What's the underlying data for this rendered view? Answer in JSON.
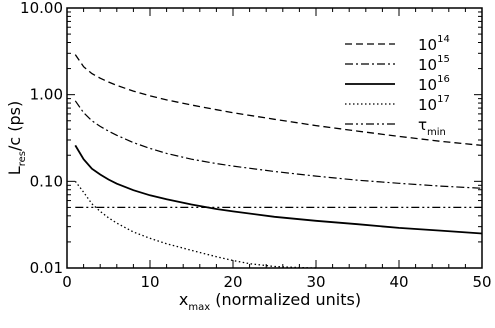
{
  "chart_data": {
    "type": "line",
    "xlabel": {
      "main": "x",
      "sub": "max",
      "rest": " (normalized units)"
    },
    "ylabel": {
      "main": "L",
      "sub": "res",
      "rest": "/c (ps)"
    },
    "xlim": [
      0,
      50
    ],
    "ylim": [
      0.01,
      10
    ],
    "yscale": "log",
    "x_ticks": [
      "0",
      "10",
      "20",
      "30",
      "40",
      "50"
    ],
    "y_ticks": [
      {
        "value": 10,
        "label": "10.00"
      },
      {
        "value": 1,
        "label": "1.00"
      },
      {
        "value": 0.1,
        "label": "0.10"
      },
      {
        "value": 0.01,
        "label": "0.01"
      }
    ],
    "grid": false,
    "legend_position": "top-right",
    "series": [
      {
        "name": "10",
        "name_sup": "14",
        "dash": "dashed",
        "x": [
          1,
          2,
          3,
          4,
          5,
          6,
          8,
          10,
          12,
          15,
          18,
          20,
          25,
          30,
          35,
          40,
          45,
          50
        ],
        "y": [
          2.9,
          2.1,
          1.75,
          1.55,
          1.4,
          1.28,
          1.1,
          0.97,
          0.87,
          0.76,
          0.67,
          0.62,
          0.52,
          0.44,
          0.38,
          0.33,
          0.29,
          0.26
        ]
      },
      {
        "name": "10",
        "name_sup": "15",
        "dash": "dashdot",
        "x": [
          1,
          2,
          3,
          4,
          5,
          6,
          8,
          10,
          12,
          15,
          18,
          20,
          25,
          30,
          35,
          40,
          45,
          50
        ],
        "y": [
          0.85,
          0.62,
          0.5,
          0.43,
          0.38,
          0.34,
          0.28,
          0.24,
          0.21,
          0.18,
          0.16,
          0.15,
          0.13,
          0.115,
          0.103,
          0.095,
          0.088,
          0.083
        ]
      },
      {
        "name": "10",
        "name_sup": "16",
        "dash": "solid",
        "x": [
          1,
          2,
          3,
          4,
          5,
          6,
          8,
          10,
          12,
          15,
          18,
          20,
          25,
          30,
          35,
          40,
          45,
          50
        ],
        "y": [
          0.26,
          0.18,
          0.14,
          0.12,
          0.105,
          0.094,
          0.079,
          0.069,
          0.062,
          0.054,
          0.048,
          0.045,
          0.039,
          0.035,
          0.032,
          0.029,
          0.027,
          0.025
        ]
      },
      {
        "name": "10",
        "name_sup": "17",
        "dash": "dotted",
        "x": [
          1,
          2,
          3,
          4,
          5,
          6,
          8,
          10,
          12,
          15,
          18,
          20,
          22,
          25,
          28,
          30
        ],
        "y": [
          0.1,
          0.075,
          0.055,
          0.045,
          0.038,
          0.033,
          0.026,
          0.022,
          0.019,
          0.016,
          0.0135,
          0.0122,
          0.0112,
          0.0104,
          0.0101,
          0.01
        ]
      },
      {
        "name": "τ",
        "name_sub": "min",
        "dash": "dashdotdot",
        "x": [
          1,
          50
        ],
        "y": [
          0.05,
          0.05
        ]
      }
    ]
  }
}
